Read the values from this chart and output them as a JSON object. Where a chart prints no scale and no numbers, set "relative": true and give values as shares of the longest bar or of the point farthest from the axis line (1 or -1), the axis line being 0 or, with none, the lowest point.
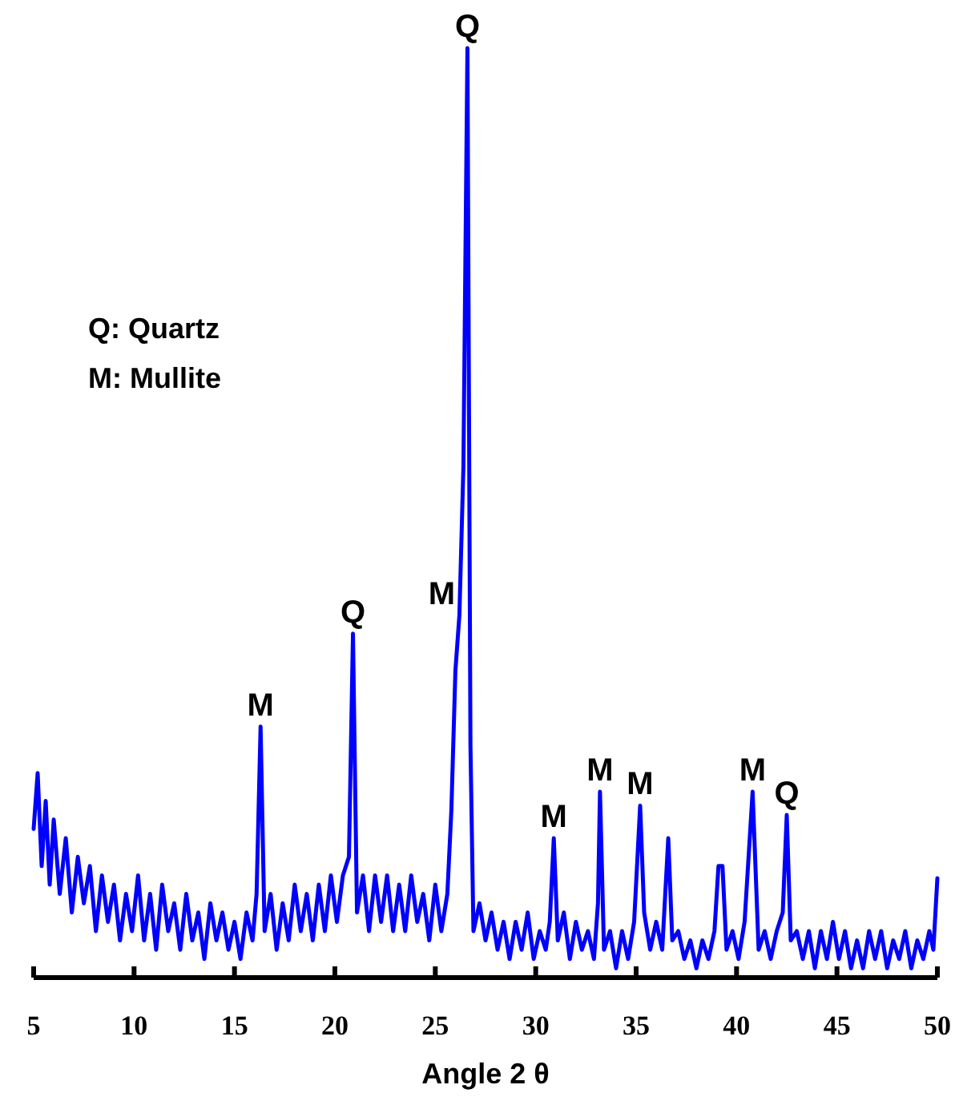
{
  "chart_data": {
    "type": "line",
    "relative": true,
    "xlabel": "Angle 2 θ",
    "xlim": [
      5,
      50
    ],
    "xticks": [
      5,
      10,
      15,
      20,
      25,
      30,
      35,
      40,
      45,
      50
    ],
    "grid": false,
    "marker": "none",
    "line_style": "solid",
    "annotations": [
      "Q: Quartz",
      "M: Mullite",
      {
        "text": "M",
        "x": 16.3,
        "y": 0.27
      },
      {
        "text": "Q",
        "x": 20.9,
        "y": 0.37
      },
      {
        "text": "M",
        "x": 26.2,
        "y": 0.39
      },
      {
        "text": "Q",
        "x": 26.6,
        "y": 1
      },
      {
        "text": "M",
        "x": 30.9,
        "y": 0.15
      },
      {
        "text": "M",
        "x": 33.2,
        "y": 0.2
      },
      {
        "text": "M",
        "x": 35.2,
        "y": 0.185
      },
      {
        "text": "M",
        "x": 40.8,
        "y": 0.2
      },
      {
        "text": "Q",
        "x": 42.5,
        "y": 0.175
      }
    ],
    "series": [
      {
        "color": "#0000ff",
        "x": [
          5.0,
          5.2,
          5.4,
          5.6,
          5.8,
          6.0,
          6.3,
          6.6,
          6.9,
          7.2,
          7.5,
          7.8,
          8.1,
          8.4,
          8.7,
          9.0,
          9.3,
          9.6,
          9.9,
          10.2,
          10.5,
          10.8,
          11.1,
          11.4,
          11.7,
          12.0,
          12.3,
          12.6,
          12.9,
          13.2,
          13.5,
          13.8,
          14.1,
          14.4,
          14.7,
          15.0,
          15.3,
          15.6,
          15.9,
          16.1,
          16.3,
          16.5,
          16.8,
          17.1,
          17.4,
          17.7,
          18.0,
          18.3,
          18.6,
          18.9,
          19.2,
          19.5,
          19.8,
          20.1,
          20.4,
          20.7,
          20.9,
          21.1,
          21.4,
          21.7,
          22.0,
          22.3,
          22.6,
          22.9,
          23.2,
          23.5,
          23.8,
          24.1,
          24.4,
          24.7,
          25.0,
          25.3,
          25.6,
          25.8,
          26.0,
          26.2,
          26.4,
          26.6,
          26.75,
          26.9,
          27.2,
          27.5,
          27.8,
          28.1,
          28.4,
          28.7,
          29.0,
          29.3,
          29.6,
          29.9,
          30.2,
          30.5,
          30.7,
          30.9,
          31.1,
          31.4,
          31.7,
          32.0,
          32.3,
          32.6,
          32.9,
          33.1,
          33.2,
          33.4,
          33.7,
          34.0,
          34.3,
          34.6,
          34.9,
          35.2,
          35.4,
          35.7,
          36.0,
          36.3,
          36.6,
          36.8,
          37.1,
          37.4,
          37.7,
          38.0,
          38.3,
          38.6,
          38.9,
          39.1,
          39.3,
          39.5,
          39.8,
          40.1,
          40.4,
          40.8,
          41.1,
          41.4,
          41.7,
          42.0,
          42.3,
          42.5,
          42.7,
          43.0,
          43.3,
          43.6,
          43.9,
          44.2,
          44.5,
          44.8,
          45.1,
          45.4,
          45.7,
          46.0,
          46.3,
          46.6,
          46.9,
          47.2,
          47.5,
          47.8,
          48.1,
          48.4,
          48.7,
          49.0,
          49.3,
          49.6,
          49.8,
          50.0
        ],
        "values": [
          0.16,
          0.22,
          0.12,
          0.19,
          0.1,
          0.17,
          0.09,
          0.15,
          0.07,
          0.13,
          0.08,
          0.12,
          0.05,
          0.11,
          0.06,
          0.1,
          0.04,
          0.09,
          0.05,
          0.11,
          0.04,
          0.09,
          0.03,
          0.1,
          0.05,
          0.08,
          0.03,
          0.09,
          0.04,
          0.07,
          0.02,
          0.08,
          0.04,
          0.07,
          0.03,
          0.06,
          0.02,
          0.07,
          0.04,
          0.09,
          0.27,
          0.05,
          0.09,
          0.03,
          0.08,
          0.04,
          0.1,
          0.05,
          0.09,
          0.04,
          0.1,
          0.05,
          0.11,
          0.06,
          0.11,
          0.13,
          0.37,
          0.07,
          0.11,
          0.05,
          0.11,
          0.06,
          0.11,
          0.05,
          0.1,
          0.05,
          0.11,
          0.06,
          0.09,
          0.04,
          0.1,
          0.05,
          0.09,
          0.18,
          0.33,
          0.39,
          0.55,
          1,
          0.25,
          0.05,
          0.08,
          0.04,
          0.07,
          0.03,
          0.06,
          0.02,
          0.06,
          0.03,
          0.07,
          0.02,
          0.05,
          0.03,
          0.06,
          0.15,
          0.04,
          0.07,
          0.02,
          0.06,
          0.03,
          0.05,
          0.02,
          0.08,
          0.2,
          0.03,
          0.05,
          0.01,
          0.05,
          0.02,
          0.06,
          0.185,
          0.07,
          0.03,
          0.06,
          0.03,
          0.15,
          0.04,
          0.05,
          0.02,
          0.04,
          0.01,
          0.04,
          0.02,
          0.05,
          0.12,
          0.12,
          0.03,
          0.05,
          0.02,
          0.06,
          0.2,
          0.03,
          0.05,
          0.02,
          0.05,
          0.07,
          0.175,
          0.04,
          0.05,
          0.02,
          0.05,
          0.01,
          0.05,
          0.02,
          0.06,
          0.02,
          0.05,
          0.01,
          0.04,
          0.01,
          0.05,
          0.02,
          0.05,
          0.01,
          0.04,
          0.02,
          0.05,
          0.01,
          0.04,
          0.02,
          0.05,
          0.03,
          0.107
        ]
      }
    ]
  }
}
